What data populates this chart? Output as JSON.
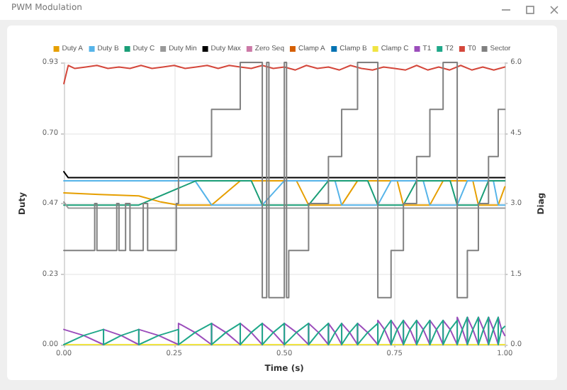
{
  "chart_data": {
    "type": "line",
    "title": "PWM Modulation",
    "xlabel": "Time (s)",
    "ylabel": "Duty",
    "y2label": "Diag",
    "xlim": [
      0,
      1
    ],
    "xticks": [
      {
        "value": 0,
        "label": "0.00"
      },
      {
        "value": 0.25,
        "label": "0.25"
      },
      {
        "value": 0.5,
        "label": "0.50"
      },
      {
        "value": 0.75,
        "label": "0.75"
      },
      {
        "value": 1,
        "label": "1.00"
      }
    ],
    "ylim": [
      0,
      0.93
    ],
    "yticks": [
      {
        "value": 0,
        "label": "0.00"
      },
      {
        "value": 0.2325,
        "label": "0.23"
      },
      {
        "value": 0.465,
        "label": "0.47"
      },
      {
        "value": 0.6975,
        "label": "0.70"
      },
      {
        "value": 0.93,
        "label": "0.93"
      }
    ],
    "y2lim": [
      0,
      6
    ],
    "y2ticks": [
      {
        "value": 0,
        "label": "0.0"
      },
      {
        "value": 1.5,
        "label": "1.5"
      },
      {
        "value": 3,
        "label": "3.0"
      },
      {
        "value": 4.5,
        "label": "4.5"
      },
      {
        "value": 6,
        "label": "6.0"
      }
    ],
    "grid": true,
    "legend": "top",
    "marker": "none",
    "line_style": "solid",
    "series": [
      {
        "name": "Duty A",
        "color": "#e69f00",
        "x": [
          0,
          0.08,
          0.17,
          0.22,
          0.26,
          0.335,
          0.4,
          0.5275,
          0.555,
          0.63,
          0.666,
          0.756,
          0.77,
          0.83,
          0.86,
          0.9275,
          0.94,
          0.985,
          1
        ],
        "values": [
          0.5,
          0.495,
          0.49,
          0.47,
          0.46,
          0.46,
          0.54,
          0.54,
          0.46,
          0.46,
          0.54,
          0.54,
          0.46,
          0.46,
          0.54,
          0.54,
          0.46,
          0.46,
          0.52
        ]
      },
      {
        "name": "Duty B",
        "color": "#56b4e9",
        "x": [
          0,
          0.2975,
          0.335,
          0.45,
          0.5,
          0.615,
          0.63,
          0.712,
          0.742,
          0.815,
          0.83,
          0.892,
          0.915,
          0.974,
          0.985,
          1
        ],
        "values": [
          0.54,
          0.54,
          0.46,
          0.46,
          0.54,
          0.54,
          0.46,
          0.46,
          0.54,
          0.54,
          0.46,
          0.46,
          0.54,
          0.54,
          0.46,
          0.46
        ]
      },
      {
        "name": "Duty C",
        "color": "#1a9e77",
        "x": [
          0,
          0.17,
          0.3,
          0.425,
          0.45,
          0.555,
          0.6,
          0.689,
          0.712,
          0.77,
          0.8,
          0.876,
          0.892,
          0.94,
          0.963,
          1
        ],
        "values": [
          0.46,
          0.46,
          0.54,
          0.54,
          0.46,
          0.46,
          0.54,
          0.54,
          0.46,
          0.46,
          0.54,
          0.54,
          0.46,
          0.46,
          0.54,
          0.54
        ]
      },
      {
        "name": "Duty Min",
        "color": "#999999",
        "x": [
          0,
          0.01,
          0.2,
          0.4,
          0.6,
          0.8,
          1
        ],
        "values": [
          0.47,
          0.45,
          0.45,
          0.45,
          0.45,
          0.45,
          0.45
        ]
      },
      {
        "name": "Duty Max",
        "color": "#000000",
        "x": [
          0,
          0.005,
          0.01,
          0.2,
          0.4,
          0.6,
          0.8,
          1
        ],
        "values": [
          0.57,
          0.56,
          0.55,
          0.55,
          0.55,
          0.55,
          0.55,
          0.55
        ]
      },
      {
        "name": "Zero Seq",
        "color": "#cc79a7"
      },
      {
        "name": "Clamp A",
        "color": "#d55e00"
      },
      {
        "name": "Clamp B",
        "color": "#0072b2"
      },
      {
        "name": "Clamp C",
        "color": "#f0e442",
        "x": [
          0,
          1
        ],
        "values": [
          0,
          0
        ]
      },
      {
        "name": "T1",
        "color": "#9b4dbb",
        "x": [
          0,
          0.045,
          0.09,
          0.09,
          0.13,
          0.17,
          0.17,
          0.215,
          0.26,
          0.26,
          0.2975,
          0.335,
          0.335,
          0.3675,
          0.4,
          0.4,
          0.425,
          0.45,
          0.45,
          0.475,
          0.5,
          0.5,
          0.5275,
          0.555,
          0.555,
          0.5775,
          0.6,
          0.6,
          0.615,
          0.63,
          0.63,
          0.648,
          0.666,
          0.666,
          0.689,
          0.712,
          0.712,
          0.727,
          0.742,
          0.742,
          0.756,
          0.77,
          0.77,
          0.785,
          0.8,
          0.8,
          0.815,
          0.83,
          0.83,
          0.845,
          0.86,
          0.86,
          0.876,
          0.892,
          0.892,
          0.9035,
          0.915,
          0.915,
          0.9275,
          0.94,
          0.94,
          0.9515,
          0.963,
          0.963,
          0.974,
          0.985,
          0.985,
          0.9925,
          1
        ],
        "values": [
          0.05,
          0.03,
          0,
          0.05,
          0.03,
          0,
          0.05,
          0.03,
          0,
          0.07,
          0.04,
          0,
          0.07,
          0.04,
          0,
          0.07,
          0.04,
          0,
          0.07,
          0.04,
          0,
          0.07,
          0.04,
          0,
          0.07,
          0.04,
          0,
          0.07,
          0.04,
          0,
          0.07,
          0.04,
          0,
          0.07,
          0.04,
          0,
          0.08,
          0.05,
          0,
          0.08,
          0.05,
          0,
          0.08,
          0.05,
          0,
          0.08,
          0.05,
          0,
          0.08,
          0.05,
          0,
          0.08,
          0.05,
          0,
          0.09,
          0.05,
          0,
          0.09,
          0.05,
          0,
          0.09,
          0.05,
          0,
          0.09,
          0.05,
          0,
          0.09,
          0.05,
          0.03
        ]
      },
      {
        "name": "T2",
        "color": "#20a88a",
        "x": [
          0,
          0.045,
          0.09,
          0.09,
          0.13,
          0.17,
          0.17,
          0.215,
          0.26,
          0.26,
          0.2975,
          0.335,
          0.335,
          0.3675,
          0.4,
          0.4,
          0.425,
          0.45,
          0.45,
          0.475,
          0.5,
          0.5,
          0.5275,
          0.555,
          0.555,
          0.5775,
          0.6,
          0.6,
          0.615,
          0.63,
          0.63,
          0.648,
          0.666,
          0.666,
          0.689,
          0.712,
          0.712,
          0.727,
          0.742,
          0.742,
          0.756,
          0.77,
          0.77,
          0.785,
          0.8,
          0.8,
          0.815,
          0.83,
          0.83,
          0.845,
          0.86,
          0.86,
          0.876,
          0.892,
          0.892,
          0.9035,
          0.915,
          0.915,
          0.9275,
          0.94,
          0.94,
          0.9515,
          0.963,
          0.963,
          0.974,
          0.985,
          0.985,
          0.9925,
          1
        ],
        "values": [
          0,
          0.03,
          0.05,
          0,
          0.03,
          0.05,
          0,
          0.03,
          0.05,
          0,
          0.04,
          0.07,
          0,
          0.04,
          0.07,
          0,
          0.04,
          0.07,
          0,
          0.04,
          0.07,
          0,
          0.04,
          0.07,
          0,
          0.04,
          0.07,
          0,
          0.04,
          0.07,
          0,
          0.04,
          0.07,
          0,
          0.04,
          0.07,
          0,
          0.05,
          0.08,
          0,
          0.05,
          0.08,
          0,
          0.05,
          0.08,
          0,
          0.05,
          0.08,
          0,
          0.05,
          0.08,
          0,
          0.05,
          0.08,
          0,
          0.05,
          0.09,
          0,
          0.05,
          0.09,
          0,
          0.05,
          0.09,
          0,
          0.05,
          0.09,
          0,
          0.05,
          0.06
        ]
      },
      {
        "name": "T0",
        "color": "#d4473b",
        "x": [
          0,
          0.01,
          0.025,
          0.05,
          0.075,
          0.1,
          0.125,
          0.15,
          0.175,
          0.2,
          0.225,
          0.25,
          0.275,
          0.3,
          0.325,
          0.35,
          0.375,
          0.4,
          0.425,
          0.45,
          0.475,
          0.5,
          0.525,
          0.55,
          0.575,
          0.6,
          0.625,
          0.65,
          0.675,
          0.7,
          0.725,
          0.75,
          0.775,
          0.8,
          0.825,
          0.85,
          0.875,
          0.9,
          0.925,
          0.95,
          0.975,
          1
        ],
        "values": [
          0.86,
          0.92,
          0.91,
          0.915,
          0.92,
          0.91,
          0.915,
          0.91,
          0.92,
          0.91,
          0.915,
          0.92,
          0.91,
          0.915,
          0.92,
          0.91,
          0.92,
          0.915,
          0.91,
          0.92,
          0.91,
          0.915,
          0.905,
          0.92,
          0.91,
          0.915,
          0.905,
          0.92,
          0.91,
          0.905,
          0.915,
          0.91,
          0.905,
          0.92,
          0.905,
          0.915,
          0.905,
          0.92,
          0.905,
          0.915,
          0.905,
          0.915
        ]
      },
      {
        "name": "Sector",
        "type": "step",
        "axis": "y2",
        "color": "#808080",
        "x": [
          0,
          0.07,
          0.075,
          0.12,
          0.125,
          0.14,
          0.15,
          0.18,
          0.19,
          0.255,
          0.26,
          0.335,
          0.4,
          0.45,
          0.46,
          0.465,
          0.5,
          0.505,
          0.51,
          0.555,
          0.6,
          0.63,
          0.666,
          0.712,
          0.742,
          0.77,
          0.8,
          0.83,
          0.86,
          0.892,
          0.915,
          0.94,
          0.963,
          0.985,
          1
        ],
        "values": [
          2,
          3,
          2,
          3,
          2,
          3,
          2,
          3,
          2,
          3,
          4,
          5,
          6,
          1,
          6,
          1,
          6,
          1,
          2,
          3,
          4,
          5,
          6,
          1,
          2,
          3,
          4,
          5,
          6,
          1,
          2,
          3,
          4,
          5,
          5
        ]
      }
    ]
  }
}
